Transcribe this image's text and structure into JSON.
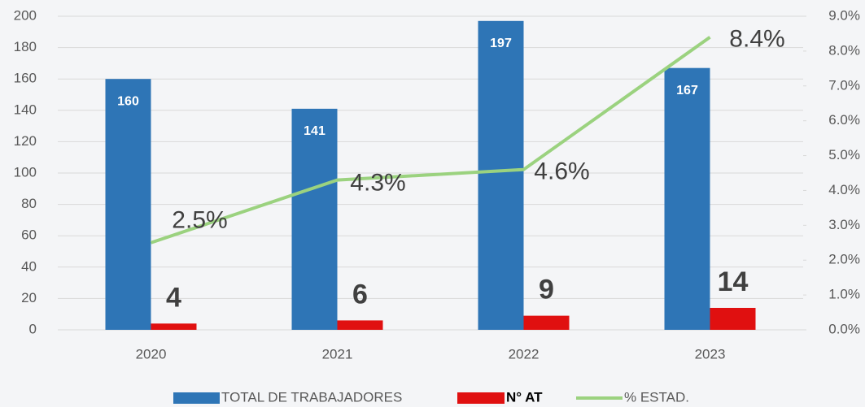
{
  "chart_data": {
    "type": "bar_line",
    "categories": [
      "2020",
      "2021",
      "2022",
      "2023"
    ],
    "series": [
      {
        "name": "TOTAL DE TRABAJADORES",
        "color": "#2e75b6",
        "values": [
          160,
          141,
          197,
          167
        ]
      },
      {
        "name": "N° AT",
        "color": "#e01010",
        "values": [
          4,
          6,
          9,
          14
        ]
      },
      {
        "name": "% ESTAD.",
        "color": "#9bd27f",
        "axis": "y2",
        "type": "line",
        "values": [
          2.5,
          4.3,
          4.6,
          8.4
        ],
        "value_labels": [
          "2.5%",
          "4.3%",
          "4.6%",
          "8.4%"
        ]
      }
    ],
    "ylim": [
      0,
      200
    ],
    "yticks": [
      0,
      20,
      40,
      60,
      80,
      100,
      120,
      140,
      160,
      180,
      200
    ],
    "y2lim": [
      0,
      9
    ],
    "y2ticks": [
      {
        "value": 0,
        "label": "0.0%"
      },
      {
        "value": 1,
        "label": "1.0%"
      },
      {
        "value": 2,
        "label": "2.0%"
      },
      {
        "value": 3,
        "label": "3.0%"
      },
      {
        "value": 4,
        "label": "4.0%"
      },
      {
        "value": 5,
        "label": "5.0%"
      },
      {
        "value": 6,
        "label": "6.0%"
      },
      {
        "value": 7,
        "label": "7.0%"
      },
      {
        "value": 8,
        "label": "8.0%"
      },
      {
        "value": 9,
        "label": "9.0%"
      }
    ],
    "grid": true,
    "legend": "bottom"
  }
}
